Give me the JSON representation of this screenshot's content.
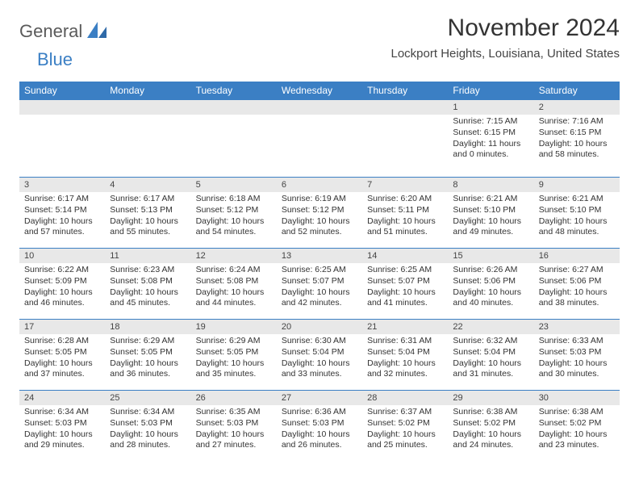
{
  "brand": {
    "text_general": "General",
    "text_blue": "Blue",
    "gray_color": "#5a5a5a",
    "blue_color": "#3b7fc4"
  },
  "header": {
    "month_title": "November 2024",
    "location": "Lockport Heights, Louisiana, United States"
  },
  "colors": {
    "header_bg": "#3b7fc4",
    "header_text": "#ffffff",
    "daynum_bg": "#e8e8e8",
    "cell_border": "#3b7fc4",
    "body_text": "#333333",
    "page_bg": "#ffffff"
  },
  "weekday_labels": [
    "Sunday",
    "Monday",
    "Tuesday",
    "Wednesday",
    "Thursday",
    "Friday",
    "Saturday"
  ],
  "calendar": {
    "type": "table",
    "columns": 7,
    "rows": 5,
    "cell_font_size_pt": 8,
    "header_font_size_pt": 9,
    "weeks": [
      [
        {
          "day": "",
          "sunrise": "",
          "sunset": "",
          "daylight": ""
        },
        {
          "day": "",
          "sunrise": "",
          "sunset": "",
          "daylight": ""
        },
        {
          "day": "",
          "sunrise": "",
          "sunset": "",
          "daylight": ""
        },
        {
          "day": "",
          "sunrise": "",
          "sunset": "",
          "daylight": ""
        },
        {
          "day": "",
          "sunrise": "",
          "sunset": "",
          "daylight": ""
        },
        {
          "day": "1",
          "sunrise": "Sunrise: 7:15 AM",
          "sunset": "Sunset: 6:15 PM",
          "daylight": "Daylight: 11 hours and 0 minutes."
        },
        {
          "day": "2",
          "sunrise": "Sunrise: 7:16 AM",
          "sunset": "Sunset: 6:15 PM",
          "daylight": "Daylight: 10 hours and 58 minutes."
        }
      ],
      [
        {
          "day": "3",
          "sunrise": "Sunrise: 6:17 AM",
          "sunset": "Sunset: 5:14 PM",
          "daylight": "Daylight: 10 hours and 57 minutes."
        },
        {
          "day": "4",
          "sunrise": "Sunrise: 6:17 AM",
          "sunset": "Sunset: 5:13 PM",
          "daylight": "Daylight: 10 hours and 55 minutes."
        },
        {
          "day": "5",
          "sunrise": "Sunrise: 6:18 AM",
          "sunset": "Sunset: 5:12 PM",
          "daylight": "Daylight: 10 hours and 54 minutes."
        },
        {
          "day": "6",
          "sunrise": "Sunrise: 6:19 AM",
          "sunset": "Sunset: 5:12 PM",
          "daylight": "Daylight: 10 hours and 52 minutes."
        },
        {
          "day": "7",
          "sunrise": "Sunrise: 6:20 AM",
          "sunset": "Sunset: 5:11 PM",
          "daylight": "Daylight: 10 hours and 51 minutes."
        },
        {
          "day": "8",
          "sunrise": "Sunrise: 6:21 AM",
          "sunset": "Sunset: 5:10 PM",
          "daylight": "Daylight: 10 hours and 49 minutes."
        },
        {
          "day": "9",
          "sunrise": "Sunrise: 6:21 AM",
          "sunset": "Sunset: 5:10 PM",
          "daylight": "Daylight: 10 hours and 48 minutes."
        }
      ],
      [
        {
          "day": "10",
          "sunrise": "Sunrise: 6:22 AM",
          "sunset": "Sunset: 5:09 PM",
          "daylight": "Daylight: 10 hours and 46 minutes."
        },
        {
          "day": "11",
          "sunrise": "Sunrise: 6:23 AM",
          "sunset": "Sunset: 5:08 PM",
          "daylight": "Daylight: 10 hours and 45 minutes."
        },
        {
          "day": "12",
          "sunrise": "Sunrise: 6:24 AM",
          "sunset": "Sunset: 5:08 PM",
          "daylight": "Daylight: 10 hours and 44 minutes."
        },
        {
          "day": "13",
          "sunrise": "Sunrise: 6:25 AM",
          "sunset": "Sunset: 5:07 PM",
          "daylight": "Daylight: 10 hours and 42 minutes."
        },
        {
          "day": "14",
          "sunrise": "Sunrise: 6:25 AM",
          "sunset": "Sunset: 5:07 PM",
          "daylight": "Daylight: 10 hours and 41 minutes."
        },
        {
          "day": "15",
          "sunrise": "Sunrise: 6:26 AM",
          "sunset": "Sunset: 5:06 PM",
          "daylight": "Daylight: 10 hours and 40 minutes."
        },
        {
          "day": "16",
          "sunrise": "Sunrise: 6:27 AM",
          "sunset": "Sunset: 5:06 PM",
          "daylight": "Daylight: 10 hours and 38 minutes."
        }
      ],
      [
        {
          "day": "17",
          "sunrise": "Sunrise: 6:28 AM",
          "sunset": "Sunset: 5:05 PM",
          "daylight": "Daylight: 10 hours and 37 minutes."
        },
        {
          "day": "18",
          "sunrise": "Sunrise: 6:29 AM",
          "sunset": "Sunset: 5:05 PM",
          "daylight": "Daylight: 10 hours and 36 minutes."
        },
        {
          "day": "19",
          "sunrise": "Sunrise: 6:29 AM",
          "sunset": "Sunset: 5:05 PM",
          "daylight": "Daylight: 10 hours and 35 minutes."
        },
        {
          "day": "20",
          "sunrise": "Sunrise: 6:30 AM",
          "sunset": "Sunset: 5:04 PM",
          "daylight": "Daylight: 10 hours and 33 minutes."
        },
        {
          "day": "21",
          "sunrise": "Sunrise: 6:31 AM",
          "sunset": "Sunset: 5:04 PM",
          "daylight": "Daylight: 10 hours and 32 minutes."
        },
        {
          "day": "22",
          "sunrise": "Sunrise: 6:32 AM",
          "sunset": "Sunset: 5:04 PM",
          "daylight": "Daylight: 10 hours and 31 minutes."
        },
        {
          "day": "23",
          "sunrise": "Sunrise: 6:33 AM",
          "sunset": "Sunset: 5:03 PM",
          "daylight": "Daylight: 10 hours and 30 minutes."
        }
      ],
      [
        {
          "day": "24",
          "sunrise": "Sunrise: 6:34 AM",
          "sunset": "Sunset: 5:03 PM",
          "daylight": "Daylight: 10 hours and 29 minutes."
        },
        {
          "day": "25",
          "sunrise": "Sunrise: 6:34 AM",
          "sunset": "Sunset: 5:03 PM",
          "daylight": "Daylight: 10 hours and 28 minutes."
        },
        {
          "day": "26",
          "sunrise": "Sunrise: 6:35 AM",
          "sunset": "Sunset: 5:03 PM",
          "daylight": "Daylight: 10 hours and 27 minutes."
        },
        {
          "day": "27",
          "sunrise": "Sunrise: 6:36 AM",
          "sunset": "Sunset: 5:03 PM",
          "daylight": "Daylight: 10 hours and 26 minutes."
        },
        {
          "day": "28",
          "sunrise": "Sunrise: 6:37 AM",
          "sunset": "Sunset: 5:02 PM",
          "daylight": "Daylight: 10 hours and 25 minutes."
        },
        {
          "day": "29",
          "sunrise": "Sunrise: 6:38 AM",
          "sunset": "Sunset: 5:02 PM",
          "daylight": "Daylight: 10 hours and 24 minutes."
        },
        {
          "day": "30",
          "sunrise": "Sunrise: 6:38 AM",
          "sunset": "Sunset: 5:02 PM",
          "daylight": "Daylight: 10 hours and 23 minutes."
        }
      ]
    ]
  }
}
